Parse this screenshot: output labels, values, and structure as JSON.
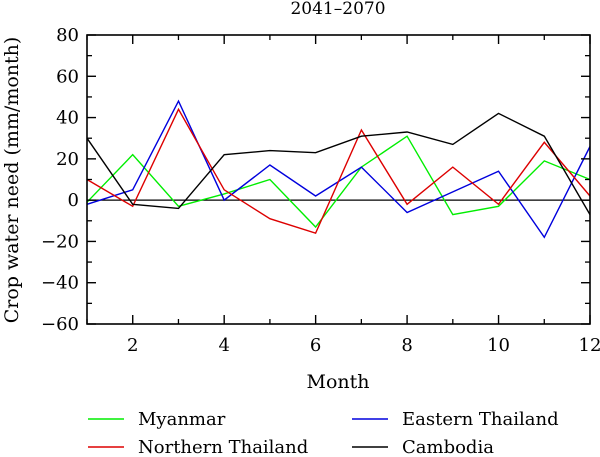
{
  "chart_data": {
    "type": "line",
    "title": "2041–2070",
    "xlabel": "Month",
    "ylabel": "Crop water need (mm/month)",
    "xlim": [
      1,
      12
    ],
    "ylim": [
      -60,
      80
    ],
    "xticks": [
      2,
      4,
      6,
      8,
      10,
      12
    ],
    "xminor_ticks": [
      1,
      2,
      3,
      4,
      5,
      6,
      7,
      8,
      9,
      10,
      11,
      12
    ],
    "yticks": [
      -60,
      -40,
      -20,
      0,
      20,
      40,
      60,
      80
    ],
    "zero_line": true,
    "grid": false,
    "legend_position": "bottom",
    "x": [
      1,
      2,
      3,
      4,
      5,
      6,
      7,
      8,
      9,
      10,
      11,
      12
    ],
    "series": [
      {
        "name": "Myanmar",
        "color": "#00ee00",
        "values": [
          -1,
          22,
          -3,
          3,
          10,
          -13,
          16,
          31,
          -7,
          -3,
          19,
          10
        ]
      },
      {
        "name": "Eastern Thailand",
        "color": "#0000dd",
        "values": [
          -2,
          5,
          48,
          0,
          17,
          2,
          16,
          -6,
          4,
          14,
          -18,
          26
        ]
      },
      {
        "name": "Northern Thailand",
        "color": "#dd0000",
        "values": [
          10,
          -3,
          44,
          5,
          -9,
          -16,
          34,
          -2,
          16,
          -2,
          28,
          2
        ]
      },
      {
        "name": "Cambodia",
        "color": "#000000",
        "values": [
          30,
          -2,
          -4,
          22,
          24,
          23,
          31,
          33,
          27,
          42,
          31,
          -7
        ]
      }
    ]
  }
}
